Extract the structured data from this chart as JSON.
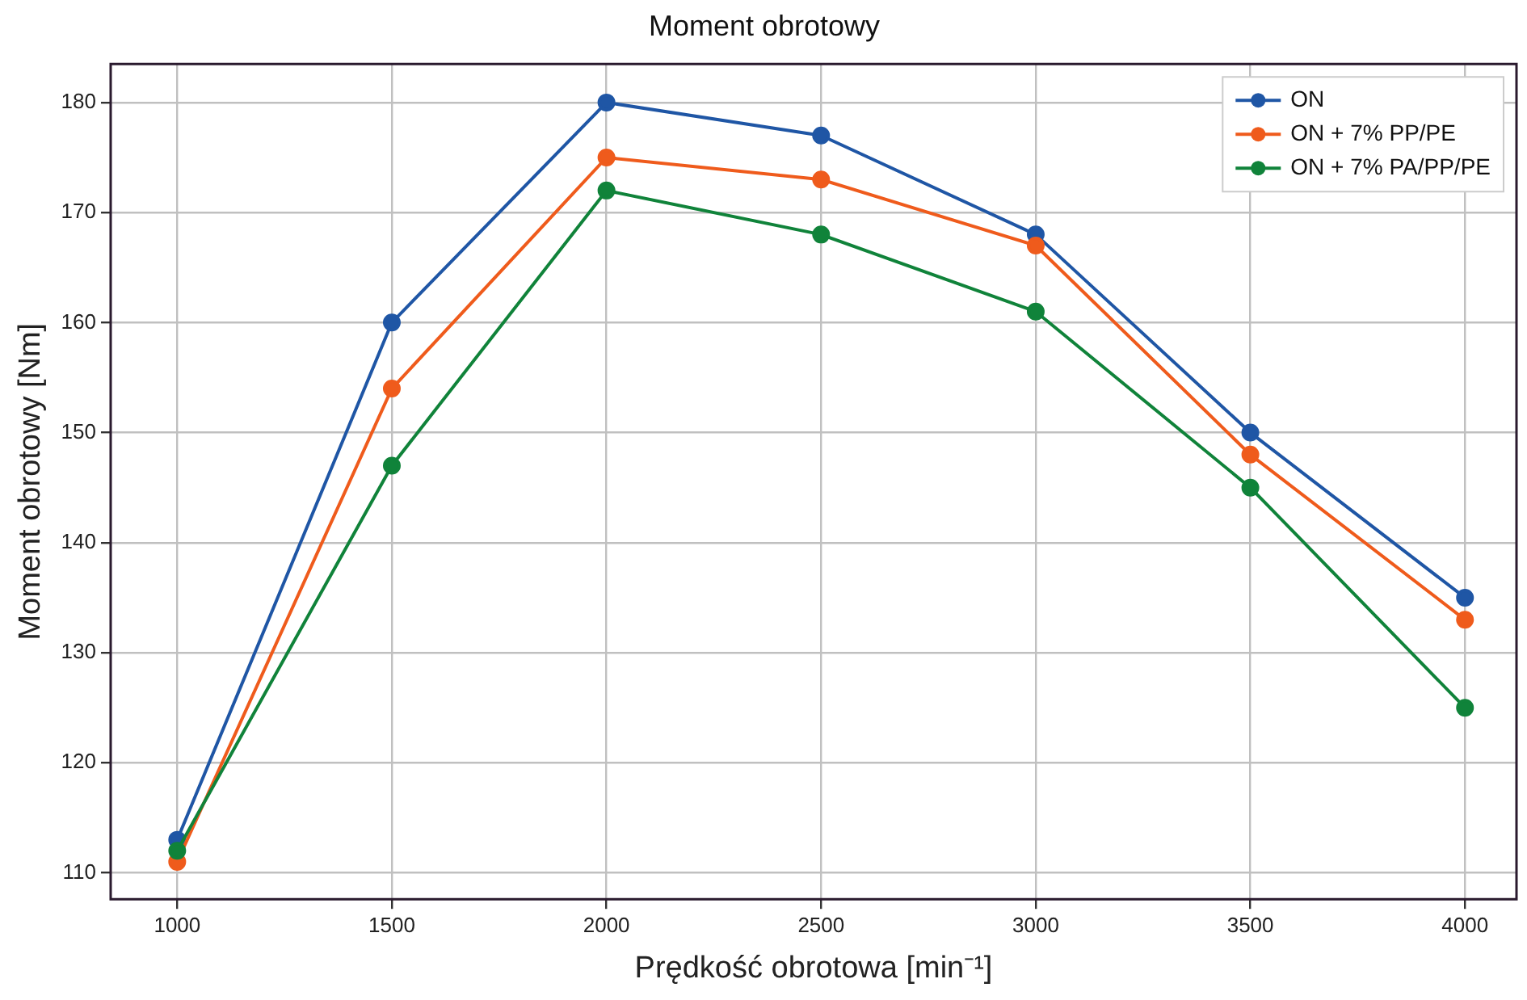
{
  "chart_data": {
    "type": "line",
    "title": "Moment obrotowy",
    "xlabel": "Prędkość obrotowa [min⁻¹]",
    "ylabel": "Moment obrotowy [Nm]",
    "x": [
      1000,
      1500,
      2000,
      2500,
      3000,
      3500,
      4000
    ],
    "series": [
      {
        "name": "ON",
        "color": "#1f56a5",
        "values": [
          113,
          160,
          180,
          177,
          168,
          150,
          135
        ]
      },
      {
        "name": "ON + 7% PP/PE",
        "color": "#ef5b1c",
        "values": [
          111,
          154,
          175,
          173,
          167,
          148,
          133
        ]
      },
      {
        "name": "ON + 7% PA/PP/PE",
        "color": "#10833a",
        "values": [
          112,
          147,
          172,
          168,
          161,
          145,
          125
        ]
      }
    ],
    "xlim": [
      845,
      4120
    ],
    "xticks": [
      1000,
      1500,
      2000,
      2500,
      3000,
      3500,
      4000
    ],
    "ylim": [
      107.6,
      183.5
    ],
    "yticks": [
      110,
      120,
      130,
      140,
      150,
      160,
      170,
      180
    ],
    "grid": true,
    "legend": "top right",
    "marker": "circle",
    "line_style": "solid"
  }
}
